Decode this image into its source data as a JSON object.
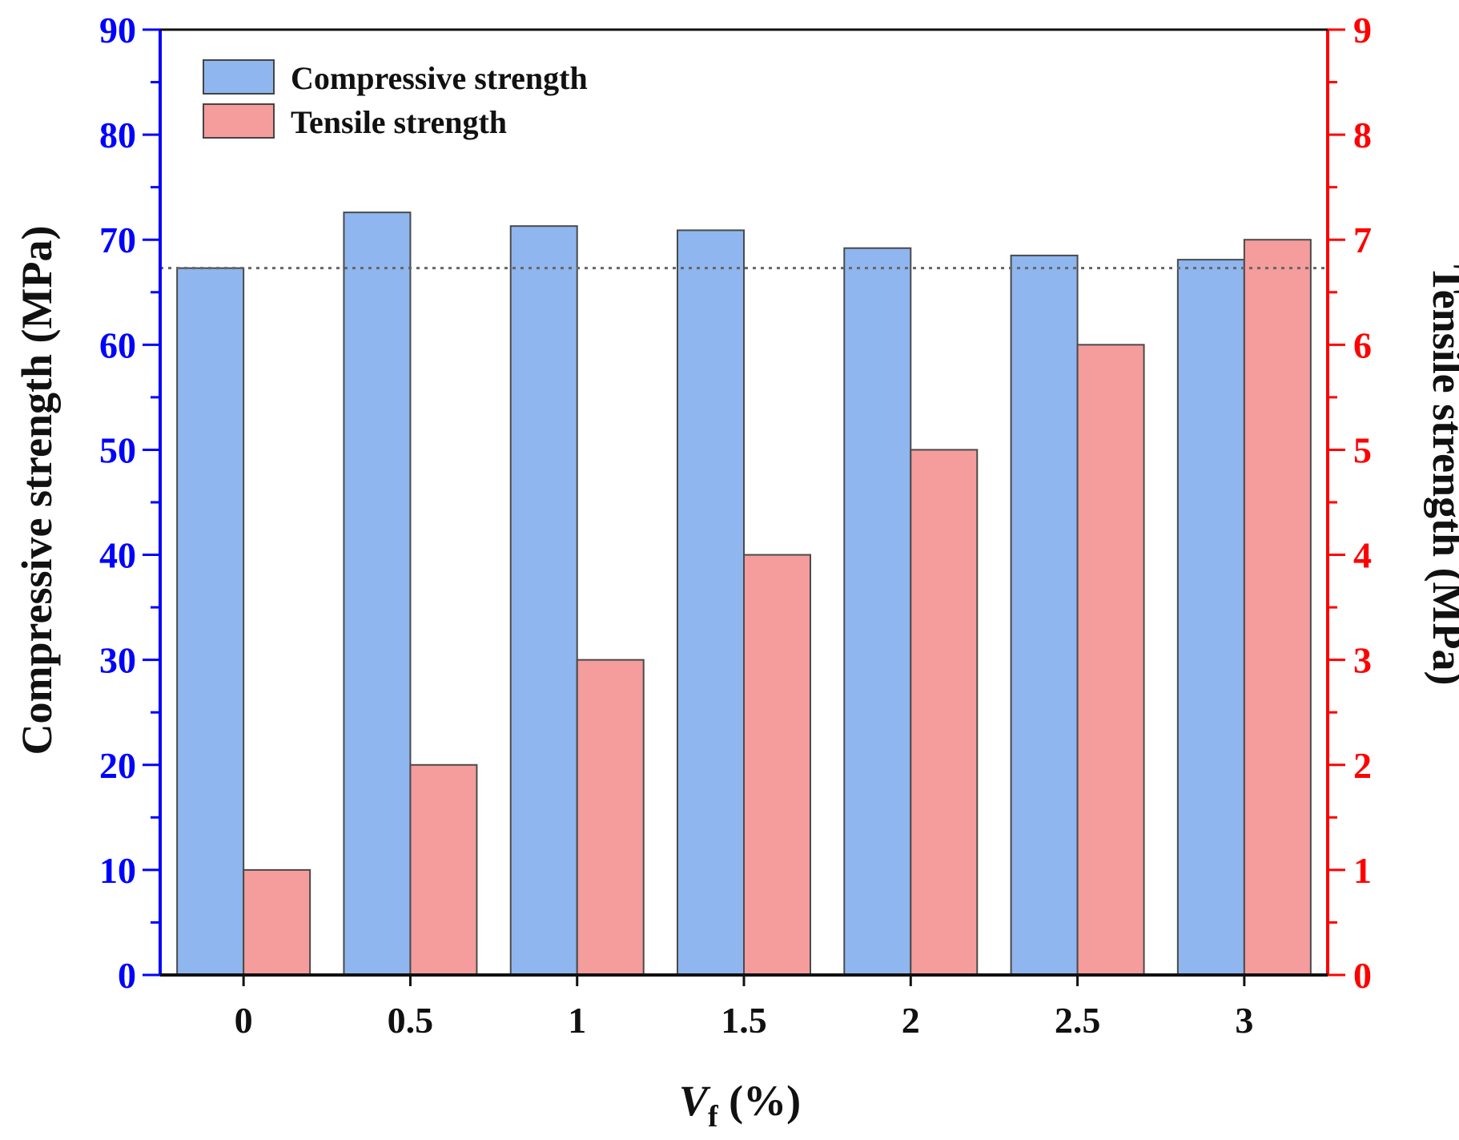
{
  "chart_data": {
    "type": "bar",
    "categories": [
      "0",
      "0.5",
      "1",
      "1.5",
      "2",
      "2.5",
      "3"
    ],
    "series": [
      {
        "name": "Compressive strength",
        "axis": "left",
        "color": "#8fb6ef",
        "values": [
          67.3,
          72.6,
          71.3,
          70.9,
          69.2,
          68.5,
          68.1
        ]
      },
      {
        "name": "Tensile strength",
        "axis": "right",
        "color": "#f59c9c",
        "values": [
          1,
          2,
          3,
          4,
          5,
          6,
          7
        ]
      }
    ],
    "reference_line": {
      "axis": "left",
      "value": 67.3,
      "style": "dotted"
    },
    "left_axis": {
      "label": "Compressive strength (MPa)",
      "ylim": [
        0,
        90
      ],
      "ticks": [
        "0",
        "10",
        "20",
        "30",
        "40",
        "50",
        "60",
        "70",
        "80",
        "90"
      ],
      "color": "#0000ff"
    },
    "right_axis": {
      "label": "Tensile strength (MPa)",
      "ylim": [
        0,
        9
      ],
      "ticks": [
        "0",
        "1",
        "2",
        "3",
        "4",
        "5",
        "6",
        "7",
        "8",
        "9"
      ],
      "color": "#ff0000"
    },
    "x_axis": {
      "label_main": "V",
      "label_sub": "f",
      "label_rest": " (%)"
    },
    "legend": {
      "placement": "top-left",
      "entries": [
        "Compressive strength",
        "Tensile strength"
      ]
    }
  }
}
